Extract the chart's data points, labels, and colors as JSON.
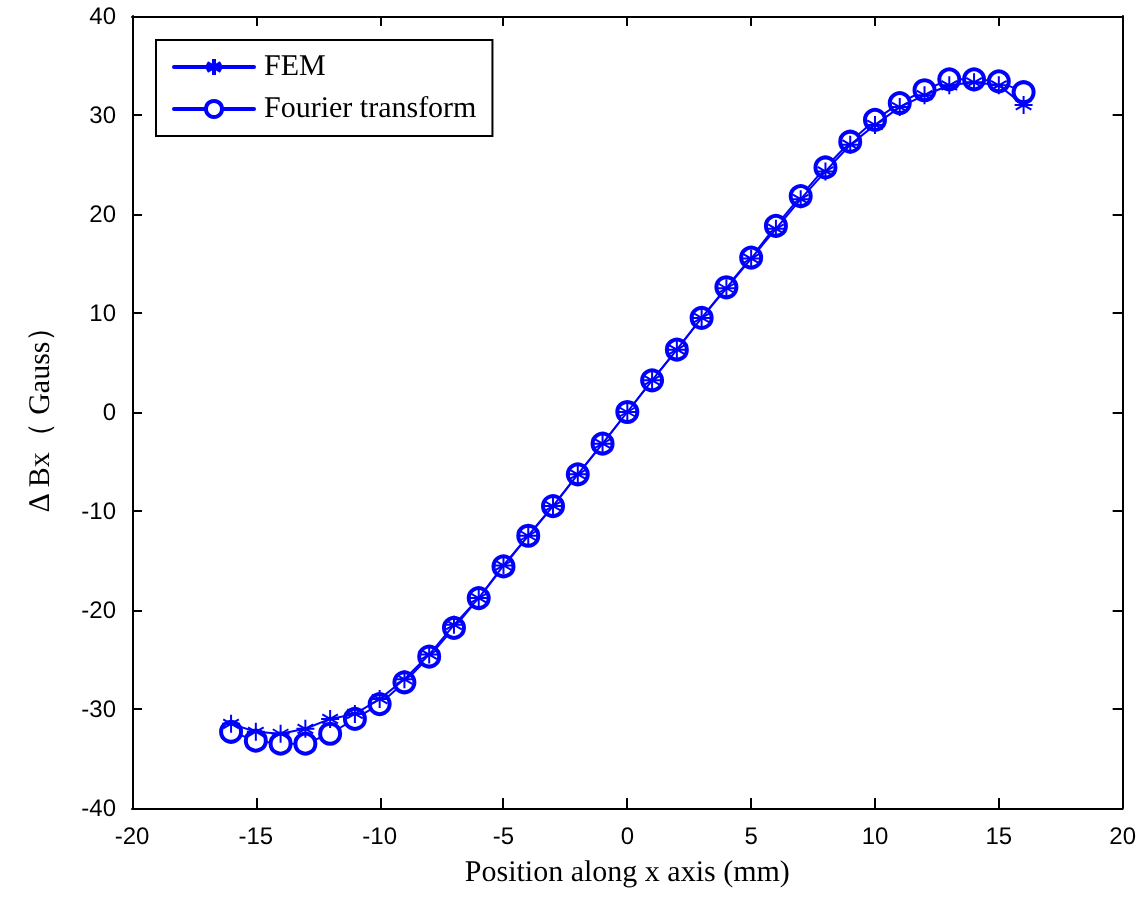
{
  "chart_data": {
    "type": "line",
    "xlabel": "Position along x axis (mm)",
    "ylabel": "Δ Bx（ Gauss）",
    "xlim": [
      -20,
      20
    ],
    "xticks": [
      -20,
      -15,
      -10,
      -5,
      0,
      5,
      10,
      15,
      20
    ],
    "ylim": [
      -40,
      40
    ],
    "yticks": [
      -40,
      -30,
      -20,
      -10,
      0,
      10,
      20,
      30,
      40
    ],
    "x": [
      -16,
      -15,
      -14,
      -13,
      -12,
      -11,
      -10,
      -9,
      -8,
      -7,
      -6,
      -5,
      -4,
      -3,
      -2,
      -1,
      0,
      1,
      2,
      3,
      4,
      5,
      6,
      7,
      8,
      9,
      10,
      11,
      12,
      13,
      14,
      15,
      16
    ],
    "grid": false,
    "legend": "top left",
    "line_style": "solid",
    "series": [
      {
        "name": "FEM",
        "color": "#0000ff",
        "marker": "cross",
        "values": [
          -31.5,
          -32.3,
          -32.5,
          -32,
          -31,
          -30.5,
          -29,
          -27,
          -24.5,
          -21.5,
          -18.8,
          -15.5,
          -12.5,
          -9.5,
          -6.3,
          -3.2,
          0,
          3.2,
          6.3,
          9.5,
          12.5,
          15.5,
          18.5,
          21.5,
          24.3,
          27,
          29,
          30.8,
          32,
          33,
          33.3,
          33,
          31
        ]
      },
      {
        "name": "Fourier transform",
        "color": "#0000ff",
        "marker": "circle",
        "values": [
          -32.3,
          -33.2,
          -33.5,
          -33.5,
          -32.5,
          -31,
          -29.5,
          -27.3,
          -24.7,
          -21.8,
          -18.8,
          -15.6,
          -12.5,
          -9.5,
          -6.3,
          -3.2,
          0,
          3.2,
          6.3,
          9.5,
          12.6,
          15.6,
          18.8,
          21.8,
          24.7,
          27.3,
          29.5,
          31.2,
          32.5,
          33.6,
          33.6,
          33.4,
          32.3
        ]
      }
    ]
  }
}
